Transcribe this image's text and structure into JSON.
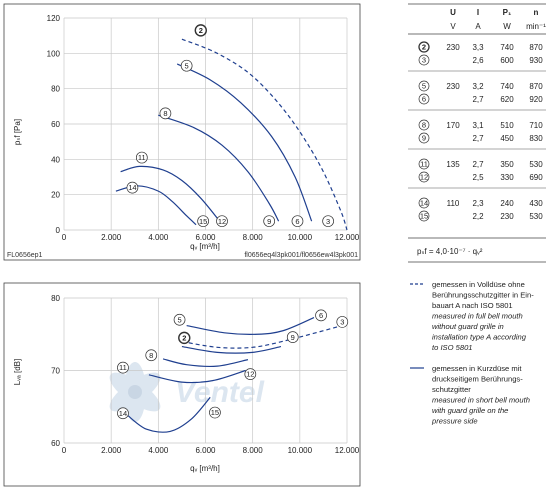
{
  "colors": {
    "curve": "#1f3f8f",
    "grid": "#c8c8c8",
    "axis": "#7a7a7a",
    "watermark": "#dce6f0"
  },
  "chart_data": [
    {
      "type": "line",
      "id": "pressure",
      "ylabel": "pₛf [Pa]",
      "xlabel": "qᵥ [m³/h]",
      "xlim": [
        0,
        12000
      ],
      "ylim": [
        0,
        120
      ],
      "xticks": [
        "0",
        "2.000",
        "4.000",
        "6.000",
        "8.000",
        "10.000",
        "12.000"
      ],
      "yticks": [
        "0",
        "20",
        "40",
        "60",
        "80",
        "100",
        "120"
      ],
      "grid": true,
      "footer_left": "FL0656ep1",
      "footer_right": "fl0656eq4l3pk001/fl0656ew4l3pk001",
      "series": [
        {
          "id": "2",
          "dashed": true,
          "points": [
            [
              5000,
              108
            ],
            [
              6500,
              100
            ],
            [
              8000,
              87
            ],
            [
              9500,
              65
            ],
            [
              10800,
              38
            ],
            [
              11700,
              12
            ],
            [
              12000,
              0
            ]
          ]
        },
        {
          "id": "5",
          "dashed": false,
          "points": [
            [
              4800,
              94
            ],
            [
              6200,
              85
            ],
            [
              7500,
              72
            ],
            [
              8800,
              53
            ],
            [
              9800,
              30
            ],
            [
              10500,
              5
            ]
          ]
        },
        {
          "id": "8",
          "dashed": false,
          "points": [
            [
              4000,
              65
            ],
            [
              5500,
              58
            ],
            [
              6700,
              48
            ],
            [
              7800,
              33
            ],
            [
              8700,
              15
            ],
            [
              9100,
              5
            ]
          ]
        },
        {
          "id": "11",
          "dashed": false,
          "points": [
            [
              2400,
              33
            ],
            [
              3200,
              36
            ],
            [
              4200,
              34
            ],
            [
              5000,
              28
            ],
            [
              5800,
              18
            ],
            [
              6600,
              5
            ]
          ]
        },
        {
          "id": "14",
          "dashed": false,
          "points": [
            [
              2200,
              22
            ],
            [
              3100,
              25
            ],
            [
              4000,
              22
            ],
            [
              4600,
              16
            ],
            [
              5200,
              8
            ],
            [
              5600,
              3
            ]
          ]
        },
        {
          "id": "3",
          "dashed": false,
          "points": [
            [
              11500,
              5
            ]
          ]
        },
        {
          "id": "6",
          "dashed": false,
          "points": [
            [
              10000,
              5
            ]
          ]
        },
        {
          "id": "9",
          "dashed": false,
          "points": [
            [
              8700,
              5
            ]
          ]
        },
        {
          "id": "12",
          "dashed": false,
          "points": [
            [
              6600,
              5
            ]
          ]
        },
        {
          "id": "15",
          "dashed": false,
          "points": [
            [
              5800,
              5
            ]
          ]
        }
      ],
      "labels": [
        {
          "id": "2",
          "x": 5800,
          "y": 113
        },
        {
          "id": "5",
          "x": 5200,
          "y": 93
        },
        {
          "id": "8",
          "x": 4300,
          "y": 66
        },
        {
          "id": "11",
          "x": 3300,
          "y": 41
        },
        {
          "id": "14",
          "x": 2900,
          "y": 24
        },
        {
          "id": "15",
          "x": 5900,
          "y": 5
        },
        {
          "id": "12",
          "x": 6700,
          "y": 5
        },
        {
          "id": "9",
          "x": 8700,
          "y": 5
        },
        {
          "id": "6",
          "x": 9900,
          "y": 5
        },
        {
          "id": "3",
          "x": 11200,
          "y": 5
        }
      ]
    },
    {
      "type": "line",
      "id": "noise",
      "ylabel": "Lᵥₐ [dB]",
      "xlabel": "qᵥ [m³/h]",
      "xlim": [
        0,
        12000
      ],
      "ylim": [
        60,
        80
      ],
      "xticks": [
        "0",
        "2.000",
        "4.000",
        "6.000",
        "8.000",
        "10.000",
        "12.000"
      ],
      "yticks": [
        "60",
        "70",
        "80"
      ],
      "grid": true,
      "series": [
        {
          "id": "6",
          "dashed": false,
          "points": [
            [
              5200,
              76.2
            ],
            [
              6800,
              75.2
            ],
            [
              8200,
              75
            ],
            [
              9300,
              75.5
            ],
            [
              10600,
              77.3
            ]
          ]
        },
        {
          "id": "9",
          "dashed": false,
          "points": [
            [
              5000,
              73.3
            ],
            [
              6500,
              72.5
            ],
            [
              8000,
              72.5
            ],
            [
              9200,
              73.3
            ]
          ]
        },
        {
          "id": "2",
          "dashed": true,
          "points": [
            [
              5000,
              74
            ],
            [
              6500,
              73.2
            ],
            [
              8000,
              73.2
            ],
            [
              9500,
              74.2
            ],
            [
              11800,
              76.2
            ]
          ]
        },
        {
          "id": "8",
          "dashed": false,
          "points": [
            [
              4200,
              71.6
            ],
            [
              5200,
              70.8
            ],
            [
              6500,
              70.6
            ],
            [
              7800,
              71.5
            ]
          ]
        },
        {
          "id": "12",
          "dashed": false,
          "points": [
            [
              3600,
              69.4
            ],
            [
              5000,
              68.4
            ],
            [
              6300,
              68.6
            ],
            [
              7700,
              70
            ]
          ]
        },
        {
          "id": "14",
          "dashed": false,
          "points": [
            [
              2700,
              63.8
            ],
            [
              3500,
              61.9
            ],
            [
              4500,
              61.6
            ],
            [
              5400,
              63.3
            ],
            [
              6200,
              66.3
            ]
          ]
        }
      ],
      "labels": [
        {
          "id": "5",
          "x": 4900,
          "y": 77
        },
        {
          "id": "2",
          "x": 5100,
          "y": 74.5
        },
        {
          "id": "6",
          "x": 10900,
          "y": 77.6
        },
        {
          "id": "3",
          "x": 11800,
          "y": 76.7
        },
        {
          "id": "9",
          "x": 9700,
          "y": 74.6
        },
        {
          "id": "8",
          "x": 3700,
          "y": 72.1
        },
        {
          "id": "11",
          "x": 2500,
          "y": 70.4
        },
        {
          "id": "12",
          "x": 7900,
          "y": 69.5
        },
        {
          "id": "14",
          "x": 2500,
          "y": 64.1
        },
        {
          "id": "15",
          "x": 6400,
          "y": 64.2
        }
      ]
    }
  ],
  "table": {
    "head": [
      "U",
      "I",
      "P₁",
      "n"
    ],
    "units": [
      "V",
      "A",
      "W",
      "min⁻¹"
    ],
    "groups": [
      {
        "rows": [
          {
            "id": "2",
            "u": "230",
            "i": "3,3",
            "p": "740",
            "n": "870"
          },
          {
            "id": "3",
            "u": "",
            "i": "2,6",
            "p": "600",
            "n": "930"
          }
        ]
      },
      {
        "rows": [
          {
            "id": "5",
            "u": "230",
            "i": "3,2",
            "p": "740",
            "n": "870"
          },
          {
            "id": "6",
            "u": "",
            "i": "2,7",
            "p": "620",
            "n": "920"
          }
        ]
      },
      {
        "rows": [
          {
            "id": "8",
            "u": "170",
            "i": "3,1",
            "p": "510",
            "n": "710"
          },
          {
            "id": "9",
            "u": "",
            "i": "2,7",
            "p": "450",
            "n": "830"
          }
        ]
      },
      {
        "rows": [
          {
            "id": "11",
            "u": "135",
            "i": "2,7",
            "p": "350",
            "n": "530"
          },
          {
            "id": "12",
            "u": "",
            "i": "2,5",
            "p": "330",
            "n": "690"
          }
        ]
      },
      {
        "rows": [
          {
            "id": "14",
            "u": "110",
            "i": "2,3",
            "p": "240",
            "n": "430"
          },
          {
            "id": "15",
            "u": "",
            "i": "2,2",
            "p": "230",
            "n": "530"
          }
        ]
      }
    ],
    "formula": "pₛf = 4,0·10⁻⁷ · qᵥ²"
  },
  "legend": {
    "dashed": {
      "lines": [
        "gemessen in Volldüse ohne",
        "Berührungsschutzgitter in Ein-",
        "bauart A nach ISO 5801"
      ],
      "italic": [
        "measured in full bell mouth",
        "without guard grille in",
        "installation type A according",
        "to ISO 5801"
      ]
    },
    "solid": {
      "lines": [
        "gemessen in Kurzdüse mit",
        "druckseitigem Berührungs-",
        "schutzgitter"
      ],
      "italic": [
        "measured in short bell mouth",
        "with guard grille on the",
        "pressure side"
      ]
    }
  },
  "watermark": "Ventel"
}
